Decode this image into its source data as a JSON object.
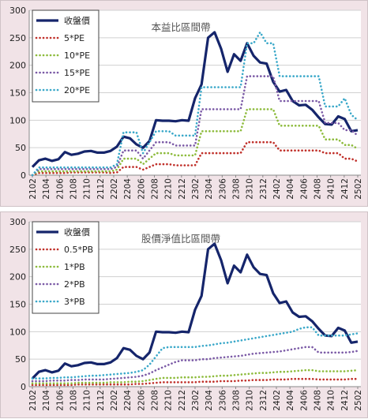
{
  "chart_data": [
    {
      "type": "line",
      "title": "本益比區間帶",
      "xlabel": "",
      "ylabel": "",
      "ylim": [
        0,
        300
      ],
      "yticks": [
        0,
        50,
        100,
        150,
        200,
        250,
        300
      ],
      "x_tick_labels": [
        "2102",
        "2104",
        "2106",
        "2108",
        "2110",
        "2112",
        "2202",
        "2204",
        "2206",
        "2208",
        "2210",
        "2212",
        "2302",
        "2304",
        "2306",
        "2308",
        "2310",
        "2312",
        "2402",
        "2404",
        "2406",
        "2408",
        "2410",
        "2412",
        "2502"
      ],
      "legend_position": "top-left",
      "grid": "horizontal",
      "series": [
        {
          "name": "收盤價",
          "style": "solid",
          "color": "#15256b",
          "values": [
            15,
            27,
            30,
            26,
            29,
            42,
            37,
            39,
            43,
            44,
            41,
            41,
            44,
            52,
            70,
            67,
            56,
            50,
            62,
            100,
            99,
            99,
            98,
            100,
            99,
            140,
            165,
            250,
            260,
            230,
            188,
            220,
            208,
            240,
            217,
            205,
            203,
            170,
            152,
            155,
            135,
            127,
            128,
            119,
            105,
            93,
            92,
            107,
            102,
            80,
            82
          ]
        },
        {
          "name": "5*PE",
          "style": "dotted",
          "color": "#c0302a",
          "values": [
            0,
            4,
            4,
            4,
            4,
            4,
            5,
            5,
            5,
            5,
            5,
            5,
            4,
            5,
            15,
            15,
            15,
            10,
            15,
            20,
            20,
            20,
            18,
            18,
            18,
            18,
            40,
            40,
            40,
            40,
            40,
            40,
            40,
            60,
            60,
            60,
            60,
            60,
            45,
            45,
            45,
            45,
            45,
            45,
            45,
            40,
            40,
            40,
            30,
            30,
            25
          ]
        },
        {
          "name": "10*PE",
          "style": "dotted",
          "color": "#8dbb3c",
          "values": [
            0,
            7,
            7,
            7,
            7,
            7,
            7,
            7,
            7,
            7,
            7,
            7,
            7,
            10,
            30,
            30,
            30,
            20,
            30,
            40,
            40,
            40,
            36,
            36,
            36,
            36,
            80,
            80,
            80,
            80,
            80,
            80,
            80,
            120,
            120,
            120,
            120,
            120,
            90,
            90,
            90,
            90,
            90,
            90,
            90,
            65,
            65,
            65,
            55,
            55,
            48
          ]
        },
        {
          "name": "15*PE",
          "style": "dotted",
          "color": "#7b5aa6",
          "values": [
            0,
            11,
            11,
            11,
            11,
            11,
            11,
            11,
            11,
            11,
            11,
            11,
            11,
            15,
            45,
            45,
            45,
            30,
            45,
            60,
            60,
            60,
            54,
            54,
            54,
            54,
            120,
            120,
            120,
            120,
            120,
            120,
            120,
            180,
            180,
            180,
            180,
            180,
            135,
            135,
            135,
            135,
            135,
            135,
            135,
            95,
            95,
            95,
            82,
            82,
            72
          ]
        },
        {
          "name": "20*PE",
          "style": "dotted",
          "color": "#3aa8c9",
          "values": [
            0,
            14,
            14,
            14,
            14,
            14,
            14,
            14,
            14,
            14,
            14,
            14,
            14,
            20,
            78,
            78,
            78,
            40,
            60,
            80,
            80,
            80,
            72,
            72,
            72,
            72,
            160,
            160,
            160,
            160,
            160,
            160,
            160,
            240,
            240,
            260,
            240,
            240,
            180,
            180,
            180,
            180,
            180,
            180,
            180,
            125,
            125,
            125,
            140,
            110,
            100
          ]
        }
      ]
    },
    {
      "type": "line",
      "title": "股價淨值比區間帶",
      "xlabel": "",
      "ylabel": "",
      "ylim": [
        0,
        300
      ],
      "yticks": [
        0,
        50,
        100,
        150,
        200,
        250,
        300
      ],
      "x_tick_labels": [
        "2102",
        "2104",
        "2106",
        "2108",
        "2110",
        "2112",
        "2202",
        "2204",
        "2206",
        "2208",
        "2210",
        "2212",
        "2302",
        "2304",
        "2306",
        "2308",
        "2310",
        "2312",
        "2402",
        "2404",
        "2406",
        "2408",
        "2410",
        "2412",
        "2502"
      ],
      "legend_position": "top-left",
      "grid": "horizontal",
      "series": [
        {
          "name": "收盤價",
          "style": "solid",
          "color": "#15256b",
          "values": [
            15,
            27,
            30,
            26,
            29,
            42,
            37,
            39,
            43,
            44,
            41,
            41,
            44,
            52,
            70,
            67,
            56,
            50,
            62,
            100,
            99,
            99,
            98,
            100,
            99,
            140,
            165,
            250,
            260,
            230,
            188,
            220,
            208,
            240,
            217,
            205,
            203,
            170,
            152,
            155,
            135,
            127,
            128,
            119,
            105,
            93,
            92,
            107,
            102,
            80,
            82
          ]
        },
        {
          "name": "0.5*PB",
          "style": "dotted",
          "color": "#c0302a",
          "values": [
            3,
            3,
            3,
            3,
            3,
            3,
            3,
            4,
            4,
            4,
            4,
            4,
            4,
            4,
            4,
            4,
            5,
            5,
            6,
            7,
            8,
            8,
            8,
            8,
            8,
            8,
            9,
            9,
            9,
            10,
            10,
            10,
            11,
            11,
            12,
            12,
            12,
            13,
            13,
            13,
            14,
            14,
            14,
            14,
            13,
            13,
            13,
            13,
            13,
            14,
            14
          ]
        },
        {
          "name": "1*PB",
          "style": "dotted",
          "color": "#8dbb3c",
          "values": [
            6,
            6,
            6,
            6,
            6,
            6,
            6,
            7,
            7,
            7,
            7,
            7,
            8,
            8,
            8,
            9,
            9,
            10,
            12,
            14,
            16,
            16,
            16,
            17,
            17,
            17,
            18,
            18,
            19,
            20,
            20,
            21,
            22,
            23,
            24,
            25,
            25,
            26,
            27,
            27,
            28,
            29,
            30,
            30,
            28,
            28,
            28,
            28,
            28,
            29,
            30
          ]
        },
        {
          "name": "2*PB",
          "style": "dotted",
          "color": "#7b5aa6",
          "values": [
            10,
            10,
            10,
            11,
            11,
            11,
            12,
            12,
            13,
            13,
            13,
            13,
            14,
            15,
            16,
            17,
            18,
            20,
            24,
            30,
            35,
            40,
            45,
            48,
            48,
            48,
            50,
            50,
            52,
            53,
            54,
            55,
            56,
            58,
            60,
            61,
            62,
            63,
            64,
            66,
            68,
            70,
            72,
            72,
            62,
            62,
            62,
            62,
            62,
            63,
            65
          ]
        },
        {
          "name": "3*PB",
          "style": "dotted",
          "color": "#3aa8c9",
          "values": [
            15,
            15,
            15,
            16,
            16,
            17,
            17,
            18,
            19,
            20,
            20,
            21,
            22,
            23,
            24,
            25,
            27,
            30,
            40,
            55,
            70,
            72,
            72,
            72,
            72,
            72,
            74,
            75,
            77,
            79,
            80,
            82,
            84,
            86,
            88,
            90,
            92,
            94,
            96,
            98,
            100,
            105,
            108,
            108,
            93,
            93,
            93,
            93,
            93,
            95,
            97
          ]
        }
      ]
    }
  ]
}
